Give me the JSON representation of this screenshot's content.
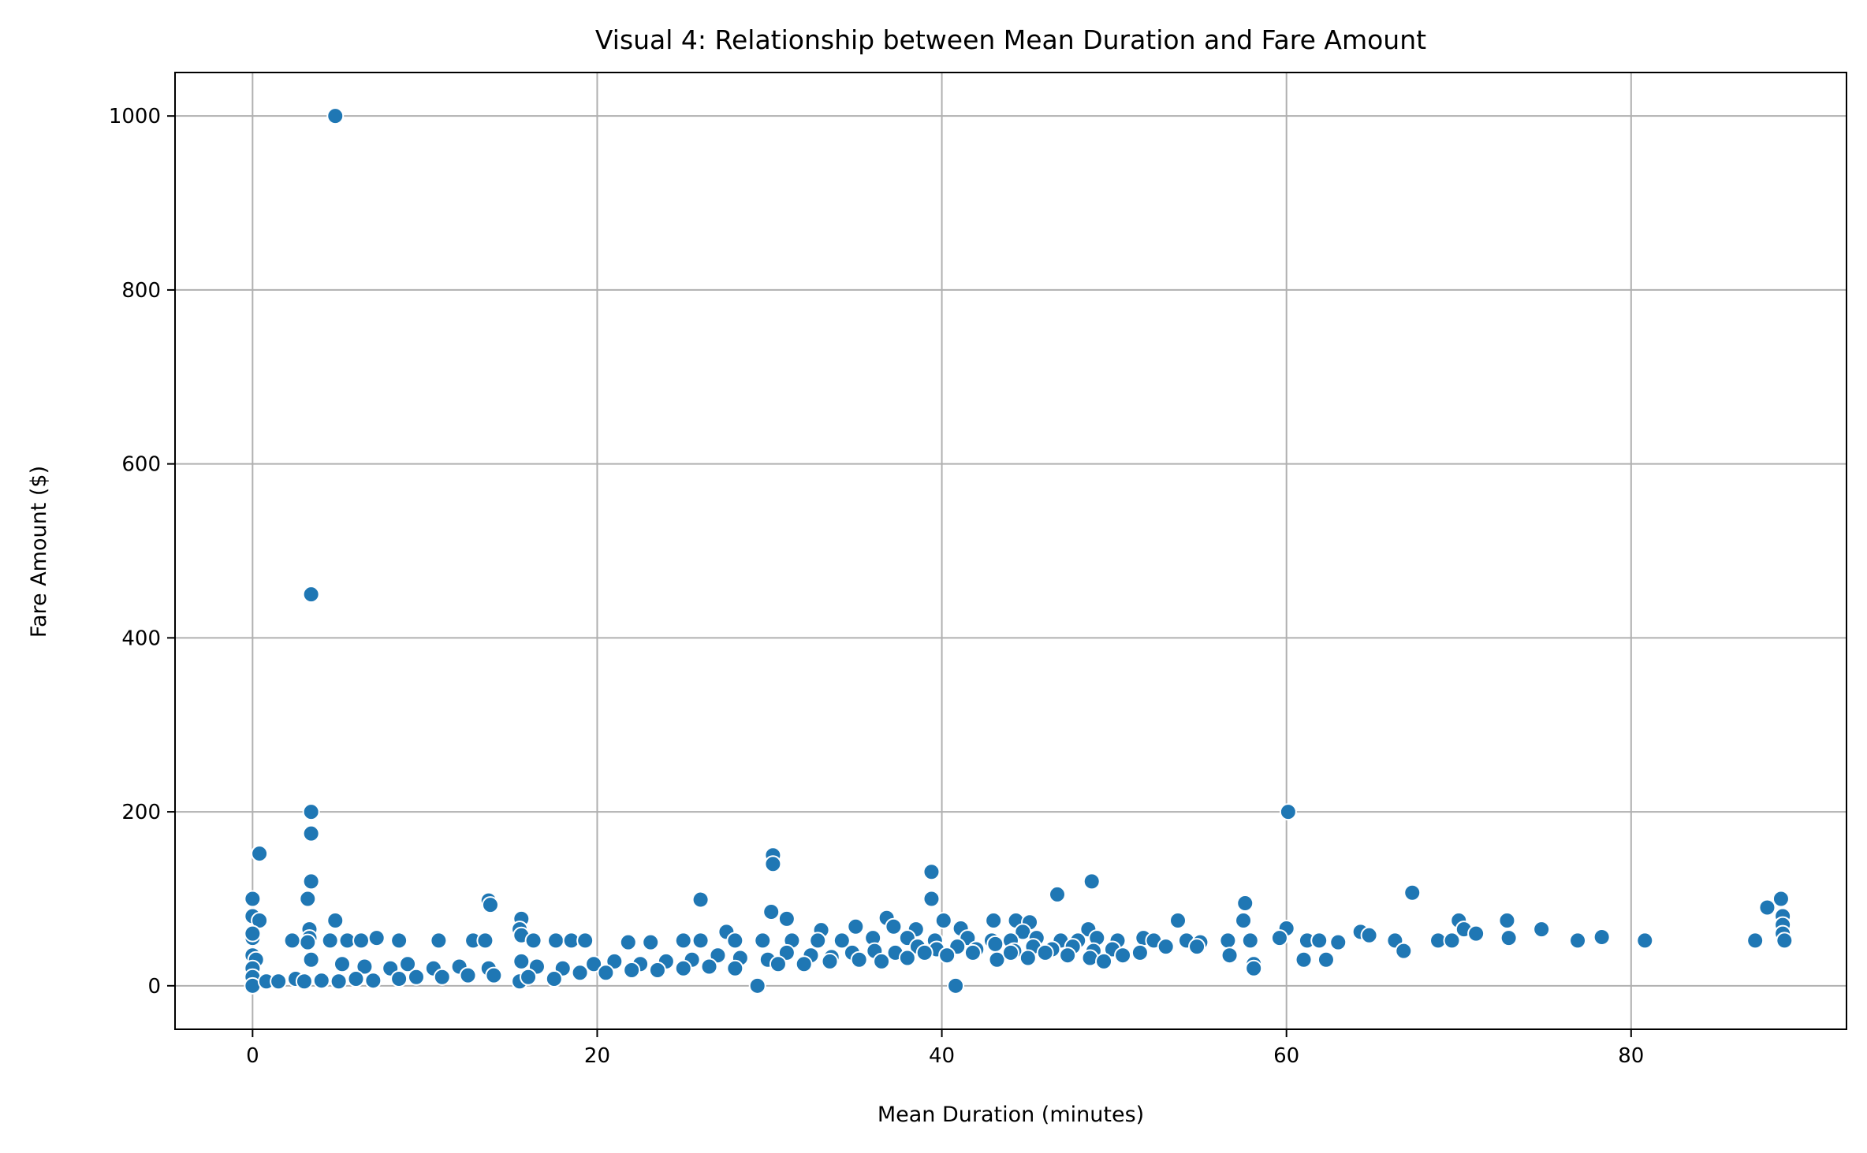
{
  "chart_data": {
    "type": "scatter",
    "title": "Visual 4: Relationship between Mean Duration and Fare Amount",
    "xlabel": "Mean Duration (minutes)",
    "ylabel": "Fare Amount ($)",
    "xlim": [
      -4.5,
      92.5
    ],
    "ylim": [
      -50,
      1050
    ],
    "xticks": [
      0,
      20,
      40,
      60,
      80
    ],
    "yticks": [
      0,
      200,
      400,
      600,
      800,
      1000
    ],
    "grid": true,
    "marker_color": "#1f77b4",
    "marker_edge_color": "#ffffff",
    "points": [
      [
        4.8,
        1000
      ],
      [
        3.4,
        450
      ],
      [
        3.4,
        200
      ],
      [
        60.1,
        200
      ],
      [
        3.4,
        175
      ],
      [
        0.4,
        152
      ],
      [
        30.2,
        150
      ],
      [
        30.2,
        140
      ],
      [
        39.4,
        131
      ],
      [
        3.4,
        120
      ],
      [
        48.7,
        120
      ],
      [
        0.0,
        100
      ],
      [
        3.2,
        100
      ],
      [
        13.7,
        98
      ],
      [
        26.0,
        99
      ],
      [
        39.4,
        100
      ],
      [
        88.7,
        100
      ],
      [
        46.7,
        105
      ],
      [
        67.3,
        107
      ],
      [
        57.6,
        95
      ],
      [
        13.8,
        93
      ],
      [
        87.9,
        90
      ],
      [
        30.1,
        85
      ],
      [
        0.0,
        80
      ],
      [
        15.6,
        77
      ],
      [
        0.4,
        75
      ],
      [
        4.8,
        75
      ],
      [
        31.0,
        77
      ],
      [
        36.8,
        78
      ],
      [
        40.1,
        75
      ],
      [
        43.0,
        75
      ],
      [
        44.3,
        75
      ],
      [
        45.1,
        73
      ],
      [
        53.7,
        75
      ],
      [
        57.5,
        75
      ],
      [
        70.0,
        75
      ],
      [
        72.8,
        75
      ],
      [
        88.8,
        80
      ],
      [
        88.8,
        70
      ],
      [
        3.3,
        65
      ],
      [
        15.5,
        65
      ],
      [
        27.5,
        62
      ],
      [
        33.0,
        64
      ],
      [
        35.0,
        68
      ],
      [
        37.2,
        68
      ],
      [
        38.5,
        65
      ],
      [
        41.1,
        66
      ],
      [
        44.7,
        62
      ],
      [
        48.5,
        65
      ],
      [
        60.0,
        66
      ],
      [
        64.3,
        62
      ],
      [
        70.3,
        65
      ],
      [
        71.0,
        60
      ],
      [
        74.8,
        65
      ],
      [
        88.8,
        60
      ],
      [
        0.0,
        55
      ],
      [
        0.0,
        60
      ],
      [
        3.3,
        55
      ],
      [
        3.2,
        50
      ],
      [
        2.3,
        52
      ],
      [
        4.5,
        52
      ],
      [
        5.5,
        52
      ],
      [
        6.3,
        52
      ],
      [
        7.2,
        55
      ],
      [
        8.5,
        52
      ],
      [
        10.8,
        52
      ],
      [
        12.8,
        52
      ],
      [
        13.5,
        52
      ],
      [
        15.6,
        58
      ],
      [
        16.3,
        52
      ],
      [
        17.6,
        52
      ],
      [
        18.5,
        52
      ],
      [
        19.3,
        52
      ],
      [
        21.8,
        50
      ],
      [
        23.1,
        50
      ],
      [
        25.0,
        52
      ],
      [
        26.0,
        52
      ],
      [
        28.0,
        52
      ],
      [
        29.6,
        52
      ],
      [
        31.3,
        52
      ],
      [
        32.8,
        52
      ],
      [
        34.2,
        52
      ],
      [
        36.0,
        55
      ],
      [
        38.0,
        55
      ],
      [
        39.6,
        52
      ],
      [
        41.5,
        55
      ],
      [
        42.9,
        52
      ],
      [
        44.0,
        52
      ],
      [
        45.5,
        55
      ],
      [
        46.9,
        52
      ],
      [
        47.9,
        52
      ],
      [
        49.0,
        55
      ],
      [
        50.2,
        52
      ],
      [
        51.7,
        55
      ],
      [
        52.3,
        52
      ],
      [
        54.2,
        52
      ],
      [
        55.0,
        50
      ],
      [
        56.6,
        52
      ],
      [
        57.9,
        52
      ],
      [
        59.6,
        55
      ],
      [
        61.2,
        52
      ],
      [
        61.9,
        52
      ],
      [
        63.0,
        50
      ],
      [
        64.8,
        58
      ],
      [
        66.3,
        52
      ],
      [
        68.8,
        52
      ],
      [
        69.6,
        52
      ],
      [
        72.9,
        55
      ],
      [
        76.9,
        52
      ],
      [
        78.3,
        56
      ],
      [
        80.8,
        52
      ],
      [
        87.2,
        52
      ],
      [
        88.9,
        52
      ],
      [
        0.0,
        35
      ],
      [
        0.2,
        30
      ],
      [
        0.0,
        20
      ],
      [
        3.4,
        30
      ],
      [
        5.2,
        25
      ],
      [
        6.5,
        22
      ],
      [
        8.0,
        20
      ],
      [
        9.0,
        25
      ],
      [
        10.5,
        20
      ],
      [
        12.0,
        22
      ],
      [
        13.7,
        20
      ],
      [
        15.6,
        28
      ],
      [
        16.5,
        22
      ],
      [
        18.0,
        20
      ],
      [
        19.8,
        25
      ],
      [
        21.0,
        28
      ],
      [
        22.5,
        25
      ],
      [
        24.0,
        28
      ],
      [
        25.5,
        30
      ],
      [
        27.0,
        35
      ],
      [
        28.3,
        32
      ],
      [
        29.9,
        30
      ],
      [
        31.0,
        38
      ],
      [
        32.4,
        35
      ],
      [
        33.6,
        33
      ],
      [
        34.8,
        38
      ],
      [
        36.1,
        40
      ],
      [
        37.3,
        38
      ],
      [
        38.6,
        45
      ],
      [
        39.7,
        42
      ],
      [
        40.9,
        45
      ],
      [
        42.0,
        42
      ],
      [
        43.1,
        48
      ],
      [
        44.2,
        40
      ],
      [
        45.3,
        45
      ],
      [
        46.4,
        42
      ],
      [
        47.6,
        45
      ],
      [
        48.8,
        40
      ],
      [
        49.9,
        42
      ],
      [
        51.5,
        38
      ],
      [
        53.0,
        45
      ],
      [
        54.8,
        45
      ],
      [
        56.7,
        35
      ],
      [
        58.1,
        25
      ],
      [
        58.1,
        20
      ],
      [
        61.0,
        30
      ],
      [
        62.3,
        30
      ],
      [
        66.8,
        40
      ],
      [
        0.0,
        10
      ],
      [
        0.0,
        0
      ],
      [
        0.8,
        5
      ],
      [
        1.5,
        5
      ],
      [
        2.5,
        8
      ],
      [
        3.0,
        5
      ],
      [
        4.0,
        6
      ],
      [
        5.0,
        5
      ],
      [
        6.0,
        8
      ],
      [
        7.0,
        6
      ],
      [
        8.5,
        8
      ],
      [
        9.5,
        10
      ],
      [
        11.0,
        10
      ],
      [
        12.5,
        12
      ],
      [
        14.0,
        12
      ],
      [
        15.5,
        5
      ],
      [
        16.0,
        10
      ],
      [
        17.5,
        8
      ],
      [
        19.0,
        15
      ],
      [
        20.5,
        15
      ],
      [
        22.0,
        18
      ],
      [
        23.5,
        18
      ],
      [
        25.0,
        20
      ],
      [
        26.5,
        22
      ],
      [
        28.0,
        20
      ],
      [
        29.3,
        0
      ],
      [
        30.5,
        25
      ],
      [
        32.0,
        25
      ],
      [
        33.5,
        28
      ],
      [
        35.2,
        30
      ],
      [
        36.5,
        28
      ],
      [
        38.0,
        32
      ],
      [
        39.0,
        38
      ],
      [
        40.3,
        35
      ],
      [
        40.8,
        0
      ],
      [
        41.8,
        38
      ],
      [
        43.2,
        30
      ],
      [
        44.0,
        38
      ],
      [
        45.0,
        32
      ],
      [
        46.0,
        38
      ],
      [
        47.3,
        35
      ],
      [
        48.6,
        32
      ],
      [
        49.4,
        28
      ],
      [
        50.5,
        35
      ]
    ]
  }
}
